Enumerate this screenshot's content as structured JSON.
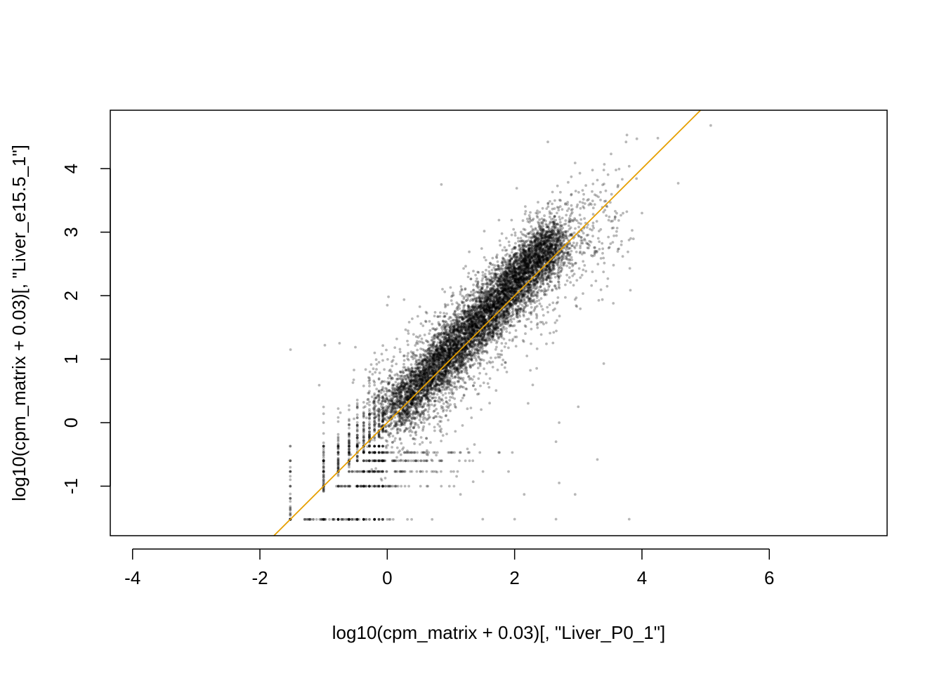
{
  "chart_data": {
    "type": "scatter",
    "xlabel": "log10(cpm_matrix + 0.03)[, \"Liver_P0_1\"]",
    "ylabel": "log10(cpm_matrix + 0.03)[, \"Liver_e15.5_1\"]",
    "xlim": [
      -4.35,
      7.85
    ],
    "ylim": [
      -1.78,
      4.92
    ],
    "x_ticks": [
      -4,
      -2,
      0,
      2,
      4,
      6
    ],
    "y_ticks": [
      -1,
      0,
      1,
      2,
      3,
      4
    ],
    "x_tick_labels": [
      "-4",
      "-2",
      "0",
      "2",
      "4",
      "6"
    ],
    "y_tick_labels": [
      "-1",
      "0",
      "1",
      "2",
      "3",
      "4"
    ],
    "grid": false,
    "point_color": "#000000",
    "point_opacity": 0.28,
    "reference_line": {
      "slope": 1,
      "intercept": 0,
      "color": "#E69F00"
    },
    "discrete_levels": [
      -1.523,
      -1.0,
      -0.77,
      -0.6,
      -0.47,
      -0.37,
      -0.28,
      -0.2,
      -0.13,
      -0.07
    ],
    "highlighted_points": [
      {
        "x": 5.08,
        "y": 4.68
      },
      {
        "x": 4.25,
        "y": 4.48
      },
      {
        "x": 3.75,
        "y": 4.42
      },
      {
        "x": 3.92,
        "y": 4.47
      },
      {
        "x": 0.85,
        "y": 3.75
      },
      {
        "x": 4.57,
        "y": 3.77
      },
      {
        "x": 2.95,
        "y": 4.09
      },
      {
        "x": 3.3,
        "y": 3.82
      },
      {
        "x": 4.0,
        "y": 3.3
      },
      {
        "x": 3.55,
        "y": 1.88
      },
      {
        "x": 3.4,
        "y": 0.93
      },
      {
        "x": 3.3,
        "y": -0.58
      },
      {
        "x": 2.7,
        "y": -0.95
      },
      {
        "x": 2.7,
        "y": 0.0
      },
      {
        "x": 2.65,
        "y": -0.3
      },
      {
        "x": 3.0,
        "y": 0.25
      },
      {
        "x": 0.0,
        "y": 1.85
      },
      {
        "x": -1.52,
        "y": 1.15
      },
      {
        "x": -0.98,
        "y": 1.22
      },
      {
        "x": -0.75,
        "y": 1.25
      },
      {
        "x": 3.8,
        "y": -1.52
      },
      {
        "x": 2.65,
        "y": -1.52
      },
      {
        "x": 2.0,
        "y": -1.52
      },
      {
        "x": 1.5,
        "y": -1.52
      },
      {
        "x": 2.95,
        "y": -1.13
      },
      {
        "x": 2.15,
        "y": -1.13
      },
      {
        "x": 1.35,
        "y": -0.93
      },
      {
        "x": 1.15,
        "y": -1.13
      }
    ]
  }
}
